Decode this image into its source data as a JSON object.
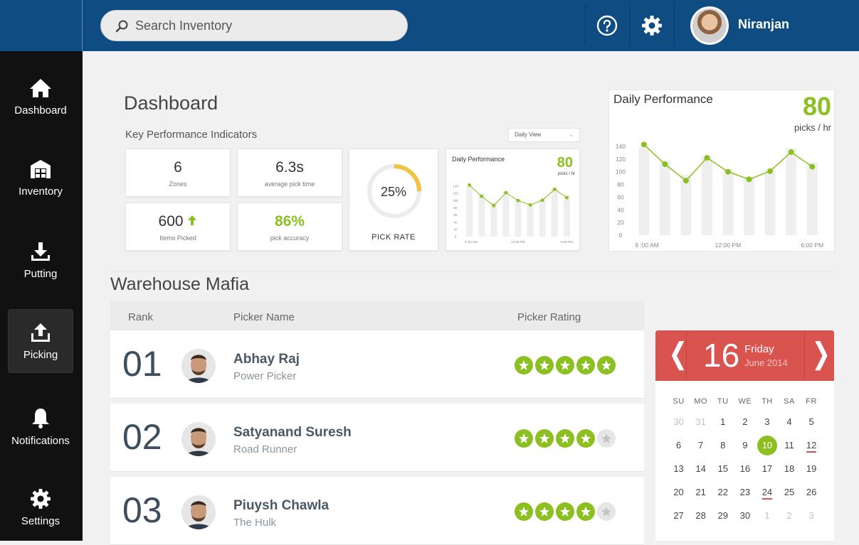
{
  "search": {
    "placeholder": "Search Inventory"
  },
  "header": {
    "username": "Niranjan",
    "help_icon": "help-circle-icon",
    "settings_icon": "gear-icon"
  },
  "sidebar": {
    "items": [
      {
        "label": "Dashboard",
        "icon": "home-icon"
      },
      {
        "label": "Inventory",
        "icon": "warehouse-icon"
      },
      {
        "label": "Putting",
        "icon": "download-icon"
      },
      {
        "label": "Picking",
        "icon": "upload-icon",
        "active": true
      },
      {
        "label": "Notifications",
        "icon": "bell-icon"
      },
      {
        "label": "Settings",
        "icon": "gear-icon"
      }
    ]
  },
  "dashboard": {
    "title": "Dashboard",
    "kpi_title": "Key Performance Indicators",
    "view_select": "Daily View",
    "kpis": [
      {
        "value": "6",
        "label": "Zones"
      },
      {
        "value": "6.3s",
        "label": "average pick time"
      },
      {
        "value": "600",
        "label": "Items Picked",
        "trend": "up"
      },
      {
        "value": "86%",
        "label": "pick accuracy"
      }
    ],
    "pick_rate": {
      "value": "25%",
      "label": "PICK RATE",
      "fraction": 0.25
    }
  },
  "daily_performance": {
    "title": "Daily Performance",
    "value": "80",
    "unit": "picks / hr"
  },
  "chart_data": {
    "type": "bar",
    "title": "Daily Performance",
    "categories": [
      "",
      "",
      "",
      "",
      "",
      "",
      "",
      "",
      ""
    ],
    "x_ticks": [
      "9 :00 AM",
      "12:00 PM",
      "6:00 PM"
    ],
    "y_ticks": [
      "140",
      "120",
      "100",
      "80",
      "60",
      "40",
      "20",
      "0"
    ],
    "ylim": [
      0,
      140
    ],
    "series": [
      {
        "type": "bar",
        "values": [
          138,
          118,
          95,
          125,
          103,
          92,
          103,
          137,
          115
        ]
      },
      {
        "type": "line",
        "values": [
          143,
          112,
          86,
          122,
          100,
          88,
          101,
          131,
          108
        ]
      }
    ]
  },
  "leaderboard": {
    "title": "Warehouse Mafia",
    "columns": {
      "rank": "Rank",
      "name": "Picker Name",
      "rating": "Picker Rating"
    },
    "rows": [
      {
        "rank": "01",
        "name": "Abhay Raj",
        "title": "Power Picker",
        "rating": 5
      },
      {
        "rank": "02",
        "name": "Satyanand Suresh",
        "title": "Road Runner",
        "rating": 4
      },
      {
        "rank": "03",
        "name": "Piuysh Chawla",
        "title": "The Hulk",
        "rating": 4
      }
    ]
  },
  "calendar": {
    "day": "16",
    "weekday": "Friday",
    "month_year": "June 2014",
    "headers": [
      "SU",
      "MO",
      "TU",
      "WE",
      "TH",
      "SA",
      "FR"
    ],
    "weeks": [
      [
        "30",
        "31",
        "1",
        "2",
        "3",
        "4",
        "5"
      ],
      [
        "6",
        "7",
        "8",
        "9",
        "10",
        "11",
        "12"
      ],
      [
        "13",
        "14",
        "15",
        "16",
        "17",
        "18",
        "19"
      ],
      [
        "20",
        "21",
        "22",
        "23",
        "24",
        "25",
        "26"
      ],
      [
        "27",
        "28",
        "29",
        "30",
        "1",
        "2",
        "3"
      ]
    ],
    "selected": "10",
    "marked": [
      "12",
      "24"
    ]
  }
}
